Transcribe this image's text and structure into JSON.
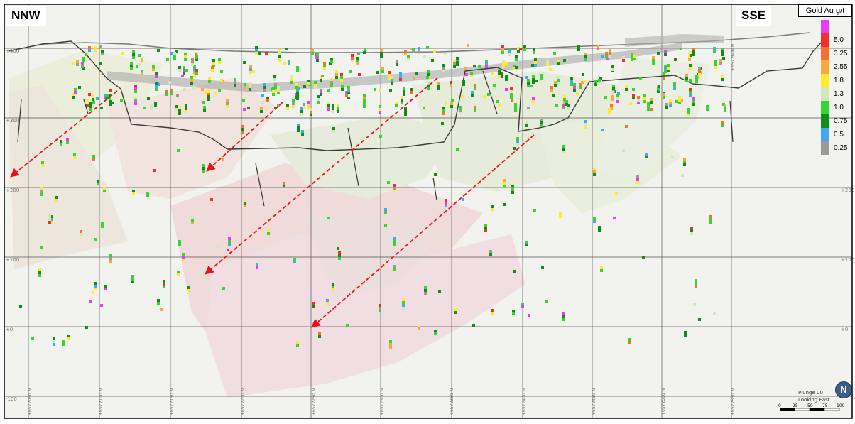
{
  "labels": {
    "left_direction": "NNW",
    "right_direction": "SSE"
  },
  "legend": {
    "title": "Gold Au g/t",
    "items": [
      {
        "label": "",
        "color": "#e83df2"
      },
      {
        "label": "5.0",
        "color": "#f0302e"
      },
      {
        "label": "3.25",
        "color": "#f4722e"
      },
      {
        "label": "2.55",
        "color": "#f8a83c"
      },
      {
        "label": "1.8",
        "color": "#ffeb2e"
      },
      {
        "label": "1.3",
        "color": "#cfe9bc"
      },
      {
        "label": "1.0",
        "color": "#36d630"
      },
      {
        "label": "0.75",
        "color": "#128c1a"
      },
      {
        "label": "0.5",
        "color": "#43a7f2"
      },
      {
        "label": "0.25",
        "color": "#9a9a9a"
      }
    ]
  },
  "section": {
    "elevation_left": [
      "+400",
      "+300",
      "+200",
      "+100",
      "+0",
      "-100"
    ],
    "elevation_right": [
      "+200",
      "+100",
      "+0"
    ],
    "northings": [
      "+6572050 N",
      "+6572100 N",
      "+6572150 N",
      "+6572200 N",
      "+6572250 N",
      "+6572300 N",
      "+6572350 N",
      "+6572400 N",
      "+6572450 N",
      "+6572500 N",
      "+6572550 N",
      "+6572600 N"
    ],
    "view_info": [
      "Plunge 00",
      "Looking East"
    ],
    "scale_ticks": [
      "0",
      "25",
      "50",
      "75",
      "100"
    ],
    "north_badge": "N"
  },
  "colors": {
    "arrow": "#e5141a",
    "grid": "#555555",
    "pit_outline": "#3a3a3a"
  }
}
